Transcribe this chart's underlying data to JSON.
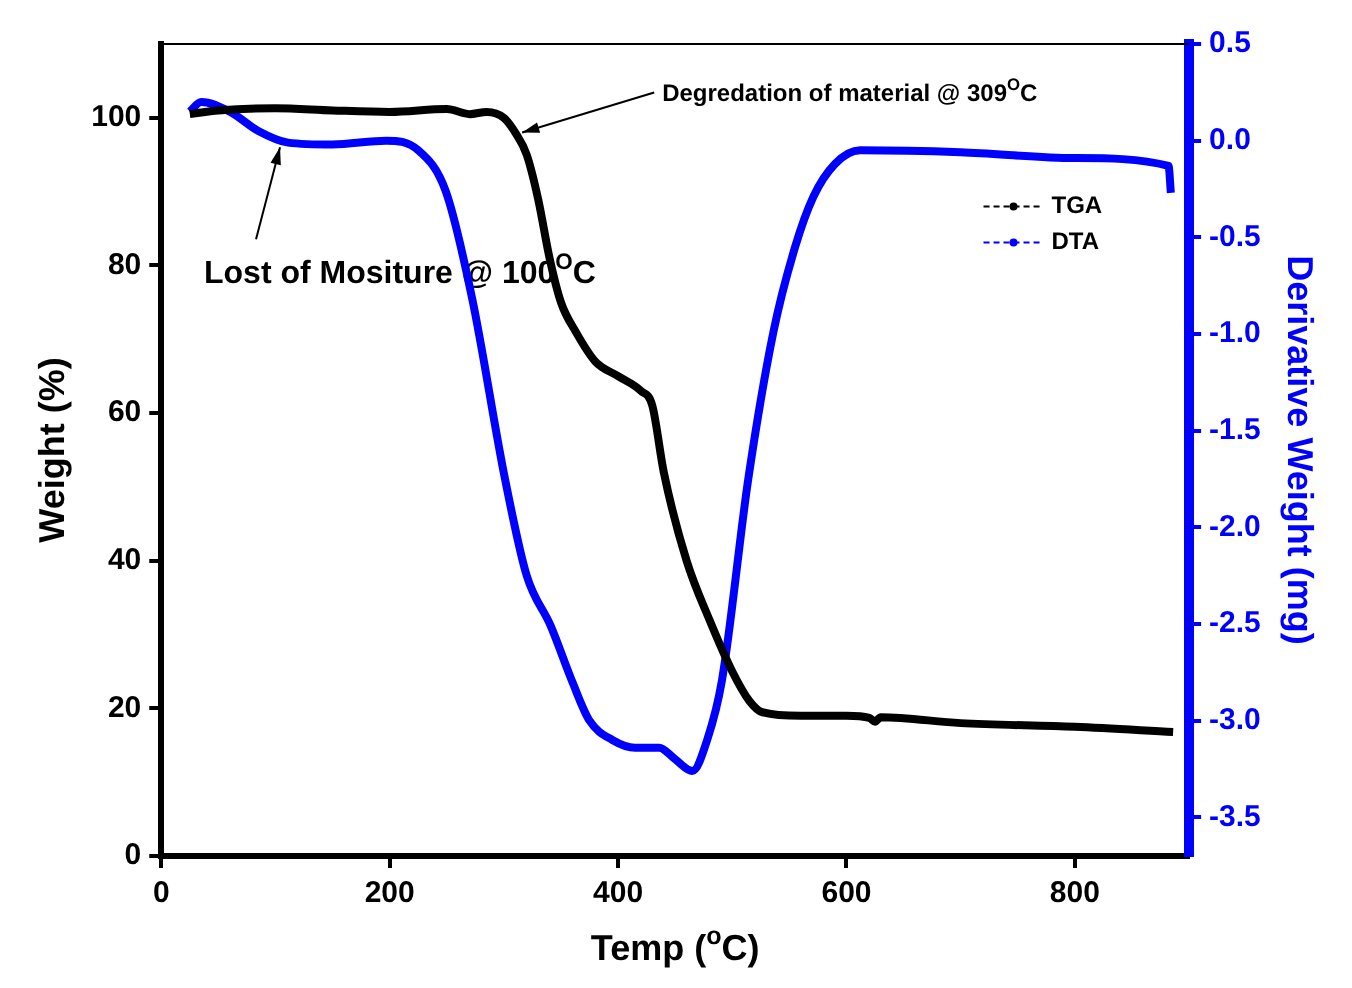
{
  "chart_data": {
    "type": "line",
    "xlabel": "Temp ($^{o}$C)",
    "ylabel": "Weight (%)",
    "y2label": "Derivative Weight (mg)",
    "xlim": [
      0,
      900
    ],
    "xticks": [
      0,
      200,
      400,
      600,
      800
    ],
    "ylim": [
      0,
      110
    ],
    "yticks": [
      0,
      20,
      40,
      60,
      80,
      100
    ],
    "y2lim": [
      -3.7,
      0.5
    ],
    "y2ticks": [
      0.5,
      {
        "value": 0,
        "label": "0.0"
      },
      -0.5,
      {
        "value": -1,
        "label": "-1.0"
      },
      -1.5,
      {
        "value": -2,
        "label": "-2.0"
      },
      -2.5,
      {
        "value": -3,
        "label": "-3.0"
      },
      -3.5
    ],
    "grid": false,
    "legend": "top right",
    "marker": "none",
    "line_style": "solid",
    "series": [
      {
        "name": "TGA",
        "color": "#000000",
        "x": [
          25,
          50,
          100,
          150,
          200,
          250,
          270,
          285,
          300,
          310,
          320,
          330,
          340,
          350,
          363,
          380,
          400,
          420,
          430,
          440,
          460,
          480,
          500,
          515,
          526,
          560,
          600,
          620,
          625,
          630,
          700,
          800,
          886
        ],
        "values": [
          100.5,
          101,
          101.3,
          101,
          100.8,
          101.2,
          100.5,
          100.8,
          100,
          98,
          95,
          89,
          81,
          75,
          71,
          67,
          65,
          63,
          61,
          52,
          40,
          32,
          25,
          21,
          19.5,
          19,
          19,
          18.7,
          18.2,
          18.8,
          18,
          17.5,
          16.8
        ]
      },
      {
        "name": "DTA",
        "color": "#0000ff",
        "axis": "y2",
        "x": [
          25,
          35,
          60,
          85,
          111,
          150,
          197,
          225,
          249,
          272,
          301,
          320,
          341,
          360,
          375,
          395,
          415,
          436,
          450,
          465,
          478,
          491,
          514,
          536,
          555,
          571,
          590,
          612,
          700,
          800,
          882,
          884
        ],
        "values": [
          0.15,
          0.2,
          0.15,
          0.05,
          -0.01,
          -0.02,
          0,
          -0.05,
          -0.26,
          -0.81,
          -1.75,
          -2.25,
          -2.51,
          -2.8,
          -3.0,
          -3.1,
          -3.14,
          -3.14,
          -3.2,
          -3.26,
          -3.1,
          -2.79,
          -1.75,
          -0.99,
          -0.55,
          -0.29,
          -0.12,
          -0.05,
          -0.06,
          -0.09,
          -0.13,
          -0.27
        ]
      }
    ],
    "annotations": [
      {
        "text": "Degredation of material @ 309$^{O}$C",
        "x": 316,
        "y": 98
      },
      {
        "text": "Lost of Mositure @ 100$^{O}$C",
        "x": 104,
        "y": 96
      }
    ]
  }
}
